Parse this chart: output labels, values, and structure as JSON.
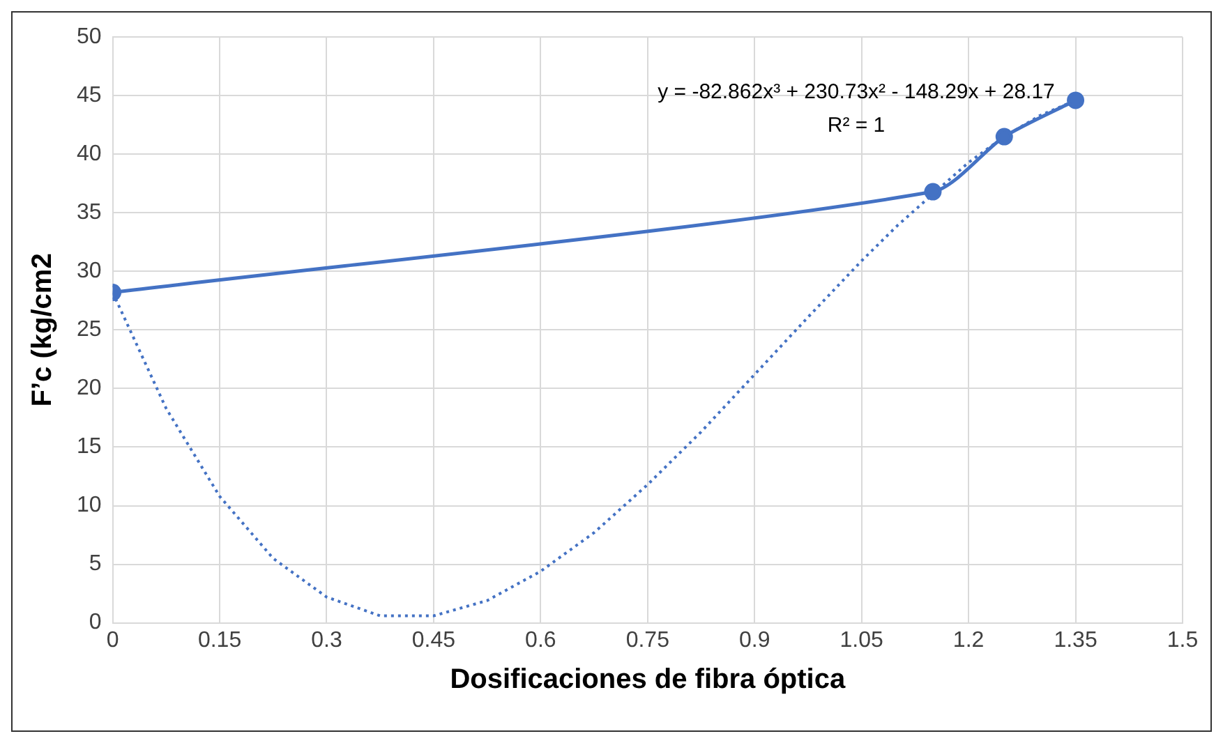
{
  "chart_data": {
    "type": "line",
    "xlabel": "Dosificaciones de fibra óptica",
    "ylabel": "F’c (kg/cm2",
    "xlim": [
      0,
      1.5
    ],
    "ylim": [
      0,
      50
    ],
    "xticks": [
      0,
      0.15,
      0.3,
      0.45,
      0.6,
      0.75,
      0.9,
      1.05,
      1.2,
      1.35,
      1.5
    ],
    "yticks": [
      0,
      5,
      10,
      15,
      20,
      25,
      30,
      35,
      40,
      45,
      50
    ],
    "grid": true,
    "legend": false,
    "series": [
      {
        "type": "line",
        "color": "#4472c4",
        "marker": "circle",
        "line_style": "solid",
        "x": [
          0,
          1.15,
          1.25,
          1.35
        ],
        "values": [
          28.2,
          36.8,
          41.5,
          44.6
        ]
      },
      {
        "type": "line",
        "color": "#4472c4",
        "marker": "none",
        "line_style": "dotted",
        "x": [
          0,
          0.075,
          0.15,
          0.225,
          0.3,
          0.375,
          0.45,
          0.525,
          0.6,
          0.675,
          0.75,
          0.825,
          0.9,
          0.975,
          1.05,
          1.1,
          1.2,
          1.25,
          1.3,
          1.35
        ],
        "values": [
          28.2,
          18.3,
          10.8,
          5.5,
          2.2,
          0.6,
          0.6,
          1.9,
          4.4,
          7.7,
          11.8,
          16.3,
          21.2,
          26.1,
          30.9,
          33.9,
          39.3,
          41.5,
          43.3,
          44.6
        ]
      }
    ],
    "annotations": [
      "y = -82.862x³ + 230.73x² - 148.29x + 28.17",
      "R² = 1"
    ]
  }
}
